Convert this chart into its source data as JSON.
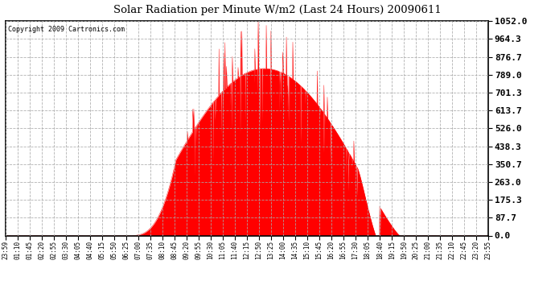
{
  "title": "Solar Radiation per Minute W/m2 (Last 24 Hours) 20090611",
  "copyright": "Copyright 2009 Cartronics.com",
  "fill_color": "#FF0000",
  "background_color": "#FFFFFF",
  "grid_color": "#AAAAAA",
  "yticks": [
    0.0,
    87.7,
    175.3,
    263.0,
    350.7,
    438.3,
    526.0,
    613.7,
    701.3,
    789.0,
    876.7,
    964.3,
    1052.0
  ],
  "ylim": [
    0.0,
    1052.0
  ],
  "xtick_labels": [
    "23:59",
    "01:10",
    "01:45",
    "02:20",
    "02:55",
    "03:30",
    "04:05",
    "04:40",
    "05:15",
    "05:50",
    "06:25",
    "07:00",
    "07:35",
    "08:10",
    "08:45",
    "09:20",
    "09:55",
    "10:30",
    "11:05",
    "11:40",
    "12:15",
    "12:50",
    "13:25",
    "14:00",
    "14:35",
    "15:10",
    "15:45",
    "16:20",
    "16:55",
    "17:30",
    "18:05",
    "18:40",
    "19:15",
    "19:50",
    "20:25",
    "21:00",
    "21:35",
    "22:10",
    "22:45",
    "23:20",
    "23:55"
  ],
  "n_points": 1440,
  "sunrise_idx": 368,
  "sunset_idx": 1175,
  "solar_noon_idx": 795,
  "peak_value": 1052.0,
  "seed": 12345
}
